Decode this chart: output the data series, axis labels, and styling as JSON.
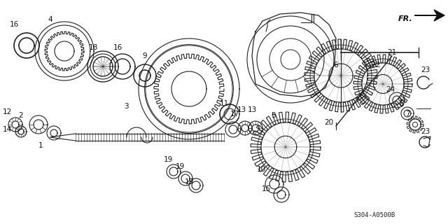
{
  "background_color": "#ffffff",
  "part_number": "S304-A0500B",
  "fr_label": "FR.",
  "line_color": "#222222"
}
